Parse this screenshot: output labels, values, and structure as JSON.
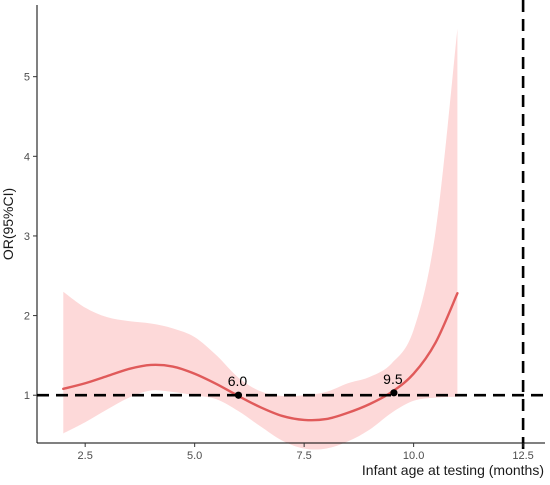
{
  "chart_data": {
    "type": "line",
    "title": "",
    "xlabel": "Infant age at testing (months)",
    "ylabel": "OR(95%CI)",
    "xlim": [
      1.4,
      13.0
    ],
    "ylim": [
      0.4,
      5.9
    ],
    "x_ticks": [
      2.5,
      5.0,
      7.5,
      10.0,
      12.5
    ],
    "x_tick_labels": [
      "2.5",
      "5.0",
      "7.5",
      "10.0",
      "12.5"
    ],
    "y_ticks": [
      1,
      2,
      3,
      4,
      5
    ],
    "y_tick_labels": [
      "1",
      "2",
      "3",
      "4",
      "5"
    ],
    "grid": false,
    "series": [
      {
        "kind": "line",
        "color": "#e05a5a",
        "x": [
          2.0,
          2.5,
          3.0,
          3.5,
          4.0,
          4.5,
          5.0,
          5.5,
          6.0,
          6.5,
          7.0,
          7.5,
          8.0,
          8.5,
          9.0,
          9.5,
          10.0,
          10.5,
          11.0
        ],
        "y": [
          1.08,
          1.15,
          1.24,
          1.33,
          1.38,
          1.36,
          1.27,
          1.14,
          0.99,
          0.85,
          0.74,
          0.69,
          0.7,
          0.78,
          0.89,
          1.04,
          1.27,
          1.66,
          2.28
        ]
      },
      {
        "kind": "band",
        "color": "#fdd9d9",
        "x": [
          2.0,
          2.5,
          3.0,
          3.5,
          4.0,
          4.5,
          5.0,
          5.5,
          6.0,
          6.5,
          7.0,
          7.5,
          8.0,
          8.5,
          9.0,
          9.5,
          10.0,
          10.5,
          11.0
        ],
        "lower": [
          0.52,
          0.66,
          0.82,
          0.97,
          1.06,
          1.04,
          1.0,
          0.95,
          0.8,
          0.61,
          0.43,
          0.33,
          0.33,
          0.42,
          0.57,
          0.78,
          0.93,
          0.97,
          0.98
        ],
        "upper": [
          2.3,
          2.1,
          1.98,
          1.93,
          1.9,
          1.84,
          1.73,
          1.5,
          1.22,
          1.05,
          0.99,
          1.0,
          1.04,
          1.15,
          1.23,
          1.4,
          1.82,
          3.05,
          5.6
        ]
      }
    ],
    "reference_lines": [
      {
        "orientation": "horizontal",
        "value": 1,
        "style": "dashed",
        "color": "#000000"
      },
      {
        "orientation": "vertical",
        "value": 12.5,
        "style": "dashed",
        "color": "#000000"
      }
    ],
    "points": [
      {
        "x": 6.0,
        "y": 1.0,
        "label": "6.0"
      },
      {
        "x": 9.55,
        "y": 1.03,
        "label": "9.5"
      }
    ]
  }
}
